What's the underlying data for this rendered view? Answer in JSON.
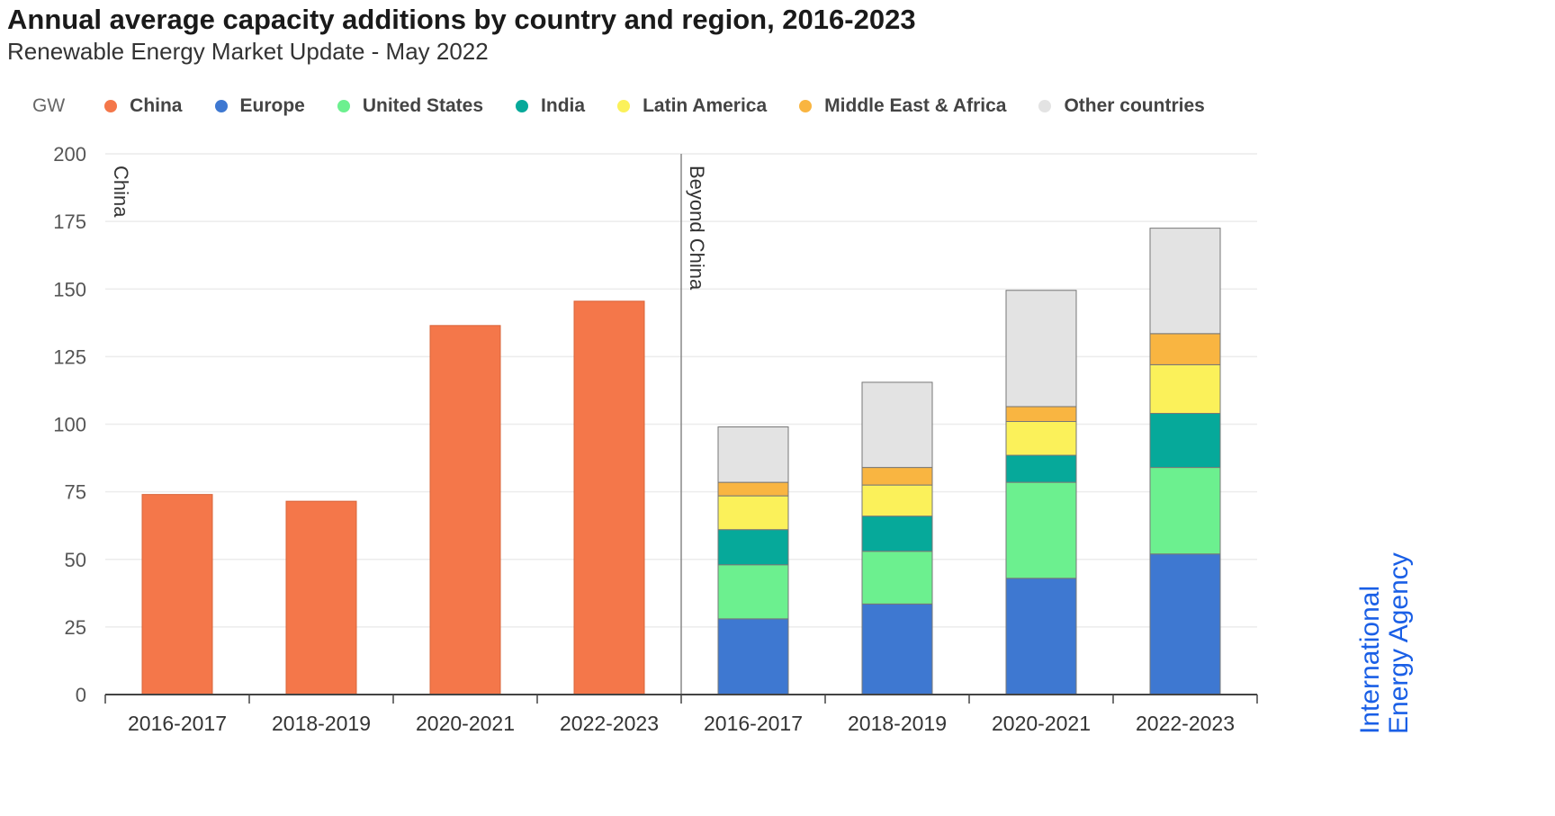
{
  "title": "Annual average capacity additions by country and region, 2016-2023",
  "subtitle": "Renewable Energy Market Update - May 2022",
  "logo_text": "International Energy Agency",
  "chart_data": {
    "type": "bar",
    "stacked": true,
    "unit": "GW",
    "ylim": [
      0,
      200
    ],
    "yticks": [
      0,
      25,
      50,
      75,
      100,
      125,
      150,
      175,
      200
    ],
    "grid": true,
    "legend_position": "top",
    "panels": [
      {
        "label": "China",
        "categories": [
          "2016-2017",
          "2018-2019",
          "2020-2021",
          "2022-2023"
        ],
        "series": [
          {
            "name": "China",
            "color": "#f4774a",
            "values": [
              74,
              71.5,
              136.5,
              145.5
            ]
          }
        ]
      },
      {
        "label": "Beyond China",
        "categories": [
          "2016-2017",
          "2018-2019",
          "2020-2021",
          "2022-2023"
        ],
        "series": [
          {
            "name": "Europe",
            "color": "#3e78d1",
            "values": [
              28,
              33.5,
              43,
              52
            ]
          },
          {
            "name": "United States",
            "color": "#6cf08f",
            "values": [
              20,
              19.5,
              35.5,
              32
            ]
          },
          {
            "name": "India",
            "color": "#06a99a",
            "values": [
              13,
              13,
              10,
              20
            ]
          },
          {
            "name": "Latin America",
            "color": "#fbf15a",
            "values": [
              12.5,
              11.5,
              12.5,
              18
            ]
          },
          {
            "name": "Middle East & Africa",
            "color": "#f9b541",
            "values": [
              5,
              6.5,
              5.5,
              11.5
            ]
          },
          {
            "name": "Other countries",
            "color": "#e3e3e3",
            "values": [
              20.5,
              31.5,
              43,
              39
            ]
          }
        ]
      }
    ],
    "legend": [
      {
        "name": "China",
        "color": "#f4774a"
      },
      {
        "name": "Europe",
        "color": "#3e78d1"
      },
      {
        "name": "United States",
        "color": "#6cf08f"
      },
      {
        "name": "India",
        "color": "#06a99a"
      },
      {
        "name": "Latin America",
        "color": "#fbf15a"
      },
      {
        "name": "Middle East & Africa",
        "color": "#f9b541"
      },
      {
        "name": "Other countries",
        "color": "#e3e3e3"
      }
    ]
  }
}
